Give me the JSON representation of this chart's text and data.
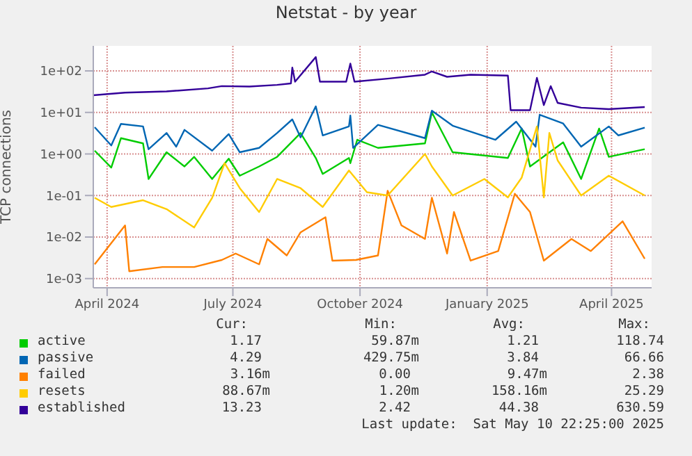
{
  "chart_data": {
    "type": "line",
    "title": "Netstat - by year",
    "ylabel": "TCP connections",
    "log": "y",
    "grid": true,
    "legend": "bottom left",
    "marker": "none",
    "line_style": "solid",
    "xlim": [
      "2024-03-22",
      "2025-04-30"
    ],
    "xticks": [
      {
        "value": "2024-04-01",
        "label": "April 2024"
      },
      {
        "value": "2024-07-01",
        "label": "July 2024"
      },
      {
        "value": "2024-10-01",
        "label": "October 2024"
      },
      {
        "value": "2025-01-01",
        "label": "January 2025"
      },
      {
        "value": "2025-04-01",
        "label": "April 2025"
      }
    ],
    "ylim": [
      0.0006,
      400
    ],
    "yticks": [
      {
        "value": 0.001,
        "label": "1e-03"
      },
      {
        "value": 0.01,
        "label": "1e-02"
      },
      {
        "value": 0.1,
        "label": "1e-01"
      },
      {
        "value": 1,
        "label": "1e+00"
      },
      {
        "value": 10,
        "label": "1e+01"
      },
      {
        "value": 100,
        "label": "1e+02"
      }
    ],
    "series": [
      {
        "name": "active",
        "color": "#00cc00",
        "x": [
          "2024-03-23",
          "2024-04-04",
          "2024-04-11",
          "2024-04-27",
          "2024-05-01",
          "2024-05-14",
          "2024-05-27",
          "2024-06-03",
          "2024-06-16",
          "2024-06-28",
          "2024-07-06",
          "2024-07-20",
          "2024-08-02",
          "2024-08-19",
          "2024-08-30",
          "2024-09-04",
          "2024-09-23",
          "2024-09-24",
          "2024-09-29",
          "2024-10-14",
          "2024-11-17",
          "2024-11-22",
          "2024-12-07",
          "2025-01-16",
          "2025-01-26",
          "2025-02-01",
          "2025-02-25",
          "2025-03-10",
          "2025-03-23",
          "2025-03-30",
          "2025-04-25"
        ],
        "values": [
          1.2,
          0.47,
          2.4,
          1.8,
          0.25,
          1.1,
          0.5,
          0.85,
          0.25,
          0.77,
          0.3,
          0.5,
          0.85,
          3.2,
          0.8,
          0.33,
          0.8,
          0.6,
          2.2,
          1.4,
          1.8,
          10,
          1.1,
          0.8,
          4.1,
          0.5,
          1.9,
          0.25,
          4.1,
          0.85,
          1.3
        ]
      },
      {
        "name": "passive",
        "color": "#0066b3",
        "x": [
          "2024-03-23",
          "2024-04-04",
          "2024-04-11",
          "2024-04-27",
          "2024-05-01",
          "2024-05-14",
          "2024-05-21",
          "2024-05-27",
          "2024-06-16",
          "2024-06-28",
          "2024-07-06",
          "2024-07-20",
          "2024-08-02",
          "2024-08-13",
          "2024-08-19",
          "2024-08-30",
          "2024-09-04",
          "2024-09-23",
          "2024-09-24",
          "2024-09-26",
          "2024-10-14",
          "2024-11-17",
          "2024-11-22",
          "2024-12-07",
          "2025-01-07",
          "2025-01-22",
          "2025-02-05",
          "2025-02-08",
          "2025-02-25",
          "2025-03-10",
          "2025-03-30",
          "2025-04-06",
          "2025-04-25"
        ],
        "values": [
          4.4,
          1.6,
          5.3,
          4.6,
          1.3,
          3.2,
          1.5,
          3.8,
          1.2,
          3.0,
          1.1,
          1.4,
          3.2,
          6.8,
          2.5,
          14,
          2.8,
          4.6,
          8.4,
          1.4,
          5,
          2.4,
          11,
          4.8,
          2.2,
          6,
          1.5,
          8.8,
          5.4,
          1.5,
          4.6,
          2.8,
          4.3
        ]
      },
      {
        "name": "failed",
        "color": "#ff8000",
        "x": [
          "2024-03-23",
          "2024-04-14",
          "2024-04-17",
          "2024-05-11",
          "2024-06-03",
          "2024-06-23",
          "2024-07-03",
          "2024-07-20",
          "2024-07-26",
          "2024-08-09",
          "2024-08-19",
          "2024-09-06",
          "2024-09-11",
          "2024-09-28",
          "2024-10-14",
          "2024-10-21",
          "2024-10-31",
          "2024-11-17",
          "2024-11-22",
          "2024-12-03",
          "2024-12-08",
          "2024-12-20",
          "2025-01-09",
          "2025-01-21",
          "2025-02-01",
          "2025-02-11",
          "2025-03-03",
          "2025-03-17",
          "2025-04-09",
          "2025-04-25"
        ],
        "values": [
          0.0022,
          0.019,
          0.0015,
          0.0019,
          0.0019,
          0.0028,
          0.004,
          0.0022,
          0.009,
          0.0036,
          0.013,
          0.03,
          0.0027,
          0.0028,
          0.0036,
          0.13,
          0.019,
          0.009,
          0.088,
          0.004,
          0.04,
          0.0027,
          0.0046,
          0.11,
          0.04,
          0.0027,
          0.009,
          0.0046,
          0.024,
          0.003
        ]
      },
      {
        "name": "resets",
        "color": "#ffcc00",
        "x": [
          "2024-03-23",
          "2024-04-04",
          "2024-04-27",
          "2024-05-14",
          "2024-06-03",
          "2024-06-16",
          "2024-06-25",
          "2024-07-06",
          "2024-07-20",
          "2024-08-02",
          "2024-08-19",
          "2024-09-04",
          "2024-09-23",
          "2024-10-06",
          "2024-10-21",
          "2024-11-17",
          "2024-11-22",
          "2024-12-07",
          "2024-12-30",
          "2025-01-16",
          "2025-01-26",
          "2025-02-06",
          "2025-02-11",
          "2025-02-15",
          "2025-02-21",
          "2025-03-10",
          "2025-03-30",
          "2025-04-25"
        ],
        "values": [
          0.088,
          0.053,
          0.077,
          0.047,
          0.017,
          0.088,
          0.6,
          0.15,
          0.04,
          0.25,
          0.15,
          0.053,
          0.4,
          0.12,
          0.1,
          1.0,
          0.5,
          0.1,
          0.25,
          0.09,
          0.27,
          4.6,
          0.09,
          3.2,
          0.7,
          0.1,
          0.3,
          0.1
        ]
      },
      {
        "name": "established",
        "color": "#330099",
        "x": [
          "2024-03-22",
          "2024-04-14",
          "2024-05-14",
          "2024-06-13",
          "2024-06-23",
          "2024-07-13",
          "2024-08-02",
          "2024-08-12",
          "2024-08-13",
          "2024-08-15",
          "2024-08-30",
          "2024-09-02",
          "2024-09-21",
          "2024-09-24",
          "2024-09-27",
          "2024-10-21",
          "2024-11-17",
          "2024-11-22",
          "2024-12-03",
          "2024-12-20",
          "2025-01-16",
          "2025-01-18",
          "2025-02-01",
          "2025-02-06",
          "2025-02-11",
          "2025-02-16",
          "2025-02-21",
          "2025-03-10",
          "2025-03-30",
          "2025-04-25"
        ],
        "values": [
          26,
          30,
          32,
          38,
          43,
          42,
          46,
          50,
          120,
          55,
          215,
          55,
          55,
          150,
          55,
          65,
          81,
          97,
          72,
          81,
          77,
          11.3,
          11.3,
          68,
          15,
          43,
          17,
          13,
          12,
          13.5
        ]
      }
    ],
    "annotations": [
      "Cur:",
      "Min:",
      "Avg:",
      "Max:",
      "1.17",
      "59.87m",
      "1.21",
      "118.74",
      "4.29",
      "429.75m",
      "3.84",
      "66.66",
      "3.16m",
      "0.00",
      "9.47m",
      "2.38",
      "88.67m",
      "1.20m",
      "158.16m",
      "25.29",
      "13.23",
      "2.42",
      "44.38",
      "630.59",
      "Last update:  Sat May 10 22:25:00 2025"
    ]
  }
}
